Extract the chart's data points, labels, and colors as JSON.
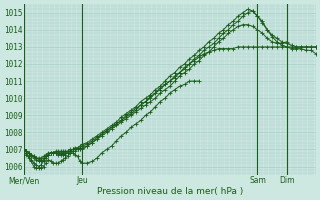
{
  "xlabel": "Pression niveau de la mer( hPa )",
  "background_color": "#cce8e0",
  "grid_color": "#aacfc8",
  "line_color": "#1a5c1a",
  "ylim": [
    1005.5,
    1015.5
  ],
  "xlim": [
    0,
    240
  ],
  "day_labels": [
    "Mer/Ven",
    "Jeu",
    "Sam",
    "Dim"
  ],
  "day_positions": [
    0,
    48,
    192,
    216
  ],
  "yticks": [
    1006,
    1007,
    1008,
    1009,
    1010,
    1011,
    1012,
    1013,
    1014,
    1015
  ],
  "series": [
    {
      "x": [
        0,
        2,
        4,
        6,
        8,
        10,
        12,
        14,
        16,
        18,
        20,
        22,
        24,
        26,
        28,
        30,
        32,
        34,
        36,
        38,
        40,
        42,
        44,
        46,
        48,
        52,
        56,
        60,
        64,
        68,
        72,
        76,
        80,
        84,
        88,
        92,
        96,
        100,
        104,
        108,
        112,
        116,
        120,
        124,
        128,
        132,
        136,
        140,
        144,
        148,
        152,
        156,
        160,
        164,
        168,
        172,
        176,
        180,
        184,
        188,
        192,
        196,
        200,
        204,
        208,
        212,
        216,
        220,
        224,
        228,
        232,
        236,
        240
      ],
      "y": [
        1007.0,
        1006.9,
        1006.8,
        1006.7,
        1006.6,
        1006.5,
        1006.5,
        1006.5,
        1006.6,
        1006.7,
        1006.8,
        1006.8,
        1006.8,
        1006.8,
        1006.8,
        1006.8,
        1006.8,
        1006.8,
        1006.9,
        1006.9,
        1007.0,
        1007.0,
        1007.0,
        1007.0,
        1007.0,
        1007.2,
        1007.4,
        1007.6,
        1007.9,
        1008.1,
        1008.3,
        1008.5,
        1008.7,
        1009.0,
        1009.2,
        1009.4,
        1009.6,
        1009.8,
        1010.0,
        1010.3,
        1010.5,
        1010.8,
        1011.0,
        1011.2,
        1011.5,
        1011.7,
        1012.0,
        1012.2,
        1012.4,
        1012.6,
        1012.7,
        1012.8,
        1012.9,
        1012.9,
        1012.9,
        1012.9,
        1013.0,
        1013.0,
        1013.0,
        1013.0,
        1013.0,
        1013.0,
        1013.0,
        1013.0,
        1013.0,
        1013.0,
        1013.0,
        1013.0,
        1013.0,
        1013.0,
        1013.0,
        1013.0,
        1013.0
      ]
    },
    {
      "x": [
        0,
        2,
        4,
        6,
        8,
        10,
        12,
        14,
        16,
        18,
        20,
        22,
        24,
        26,
        28,
        30,
        32,
        34,
        36,
        38,
        40,
        42,
        44,
        46,
        48,
        52,
        56,
        60,
        64,
        68,
        72,
        76,
        80,
        84,
        88,
        92,
        96,
        100,
        104,
        108,
        112,
        116,
        120,
        124,
        128,
        132,
        136,
        140,
        144,
        148,
        152,
        156,
        160,
        164,
        168,
        172,
        176,
        180,
        184,
        188,
        192,
        196,
        200,
        204,
        208,
        212,
        216,
        220,
        224,
        228,
        232,
        236,
        240
      ],
      "y": [
        1007.0,
        1006.9,
        1006.8,
        1006.6,
        1006.5,
        1006.4,
        1006.3,
        1006.3,
        1006.4,
        1006.6,
        1006.7,
        1006.8,
        1006.8,
        1006.9,
        1006.9,
        1006.9,
        1006.9,
        1006.9,
        1006.9,
        1007.0,
        1007.0,
        1007.1,
        1007.1,
        1007.2,
        1007.3,
        1007.4,
        1007.6,
        1007.8,
        1008.0,
        1008.2,
        1008.4,
        1008.6,
        1008.9,
        1009.1,
        1009.3,
        1009.5,
        1009.8,
        1010.0,
        1010.2,
        1010.5,
        1010.7,
        1011.0,
        1011.3,
        1011.5,
        1011.8,
        1012.0,
        1012.3,
        1012.5,
        1012.8,
        1013.0,
        1013.3,
        1013.5,
        1013.8,
        1014.0,
        1014.3,
        1014.5,
        1014.8,
        1015.0,
        1015.2,
        1015.1,
        1014.8,
        1014.4,
        1014.0,
        1013.6,
        1013.3,
        1013.1,
        1013.0,
        1012.9,
        1012.9,
        1012.9,
        1012.8,
        1012.8,
        1012.6
      ]
    },
    {
      "x": [
        0,
        2,
        4,
        6,
        8,
        10,
        12,
        14,
        16,
        18,
        20,
        22,
        24,
        26,
        28,
        30,
        32,
        34,
        36,
        38,
        40,
        42,
        44,
        46,
        48,
        52,
        56,
        60,
        64,
        68,
        72,
        76,
        80,
        84,
        88,
        92,
        96,
        100,
        104,
        108,
        112,
        116,
        120,
        124,
        128,
        132,
        136,
        140,
        144,
        148,
        152,
        156,
        160,
        164,
        168,
        172,
        176,
        180,
        184,
        188,
        192,
        196,
        200,
        204,
        208,
        212,
        216,
        220,
        224,
        228,
        232,
        236,
        240
      ],
      "y": [
        1007.0,
        1006.9,
        1006.8,
        1006.7,
        1006.6,
        1006.5,
        1006.4,
        1006.4,
        1006.5,
        1006.6,
        1006.7,
        1006.8,
        1006.8,
        1006.8,
        1006.8,
        1006.8,
        1006.8,
        1006.8,
        1006.8,
        1006.8,
        1006.9,
        1006.9,
        1007.0,
        1007.1,
        1007.2,
        1007.3,
        1007.5,
        1007.7,
        1007.9,
        1008.1,
        1008.3,
        1008.5,
        1008.7,
        1008.9,
        1009.1,
        1009.3,
        1009.6,
        1009.8,
        1010.1,
        1010.3,
        1010.6,
        1010.8,
        1011.0,
        1011.3,
        1011.5,
        1011.8,
        1012.0,
        1012.3,
        1012.5,
        1012.8,
        1013.0,
        1013.2,
        1013.5,
        1013.8,
        1014.0,
        1014.3,
        1014.5,
        1014.8,
        1015.0,
        1015.1,
        1014.8,
        1014.5,
        1014.0,
        1013.7,
        1013.5,
        1013.3,
        1013.2,
        1013.1,
        1013.0,
        1013.0,
        1013.0,
        1013.0,
        1013.0
      ]
    },
    {
      "x": [
        0,
        2,
        4,
        6,
        8,
        10,
        12,
        14,
        16,
        18,
        20,
        22,
        24,
        26,
        28,
        30,
        32,
        34,
        36,
        38,
        40,
        42,
        44,
        46,
        48,
        52,
        56,
        60,
        64,
        68,
        72,
        76,
        80,
        84,
        88,
        92,
        96,
        100,
        104,
        108,
        112,
        116,
        120,
        124,
        128,
        132,
        136,
        140,
        144,
        148,
        152,
        156,
        160,
        164,
        168,
        172,
        176,
        180,
        184,
        188,
        192,
        196,
        200,
        204,
        208,
        212,
        216
      ],
      "y": [
        1007.0,
        1006.8,
        1006.6,
        1006.4,
        1006.2,
        1006.1,
        1006.0,
        1006.1,
        1006.3,
        1006.5,
        1006.7,
        1006.8,
        1006.8,
        1006.8,
        1006.7,
        1006.7,
        1006.7,
        1006.7,
        1006.8,
        1006.9,
        1007.0,
        1007.0,
        1007.0,
        1007.0,
        1007.1,
        1007.2,
        1007.4,
        1007.6,
        1007.8,
        1008.0,
        1008.2,
        1008.4,
        1008.6,
        1008.8,
        1009.0,
        1009.2,
        1009.4,
        1009.6,
        1009.8,
        1010.0,
        1010.3,
        1010.5,
        1010.7,
        1011.0,
        1011.3,
        1011.5,
        1011.7,
        1012.0,
        1012.2,
        1012.5,
        1012.7,
        1013.0,
        1013.3,
        1013.5,
        1013.8,
        1014.0,
        1014.2,
        1014.3,
        1014.3,
        1014.2,
        1014.0,
        1013.8,
        1013.5,
        1013.3,
        1013.2,
        1013.2,
        1013.3
      ]
    },
    {
      "x": [
        0,
        2,
        4,
        6,
        8,
        10,
        12,
        14,
        16,
        18,
        20,
        22,
        24,
        26,
        28,
        30,
        32,
        34,
        36,
        38,
        40,
        42,
        44,
        46,
        48,
        52,
        56,
        60,
        64,
        68,
        72,
        76,
        80,
        84,
        88,
        92,
        96,
        100,
        104,
        108,
        112,
        116,
        120,
        124,
        128,
        132,
        136,
        140,
        144
      ],
      "y": [
        1006.8,
        1006.7,
        1006.5,
        1006.3,
        1006.0,
        1005.9,
        1005.9,
        1005.9,
        1006.0,
        1006.2,
        1006.4,
        1006.3,
        1006.2,
        1006.2,
        1006.2,
        1006.3,
        1006.4,
        1006.5,
        1006.6,
        1006.8,
        1006.8,
        1006.7,
        1006.6,
        1006.3,
        1006.2,
        1006.2,
        1006.3,
        1006.5,
        1006.8,
        1007.0,
        1007.2,
        1007.5,
        1007.8,
        1008.0,
        1008.3,
        1008.5,
        1008.7,
        1009.0,
        1009.2,
        1009.5,
        1009.8,
        1010.0,
        1010.3,
        1010.5,
        1010.7,
        1010.8,
        1011.0,
        1011.0,
        1011.0
      ]
    }
  ]
}
